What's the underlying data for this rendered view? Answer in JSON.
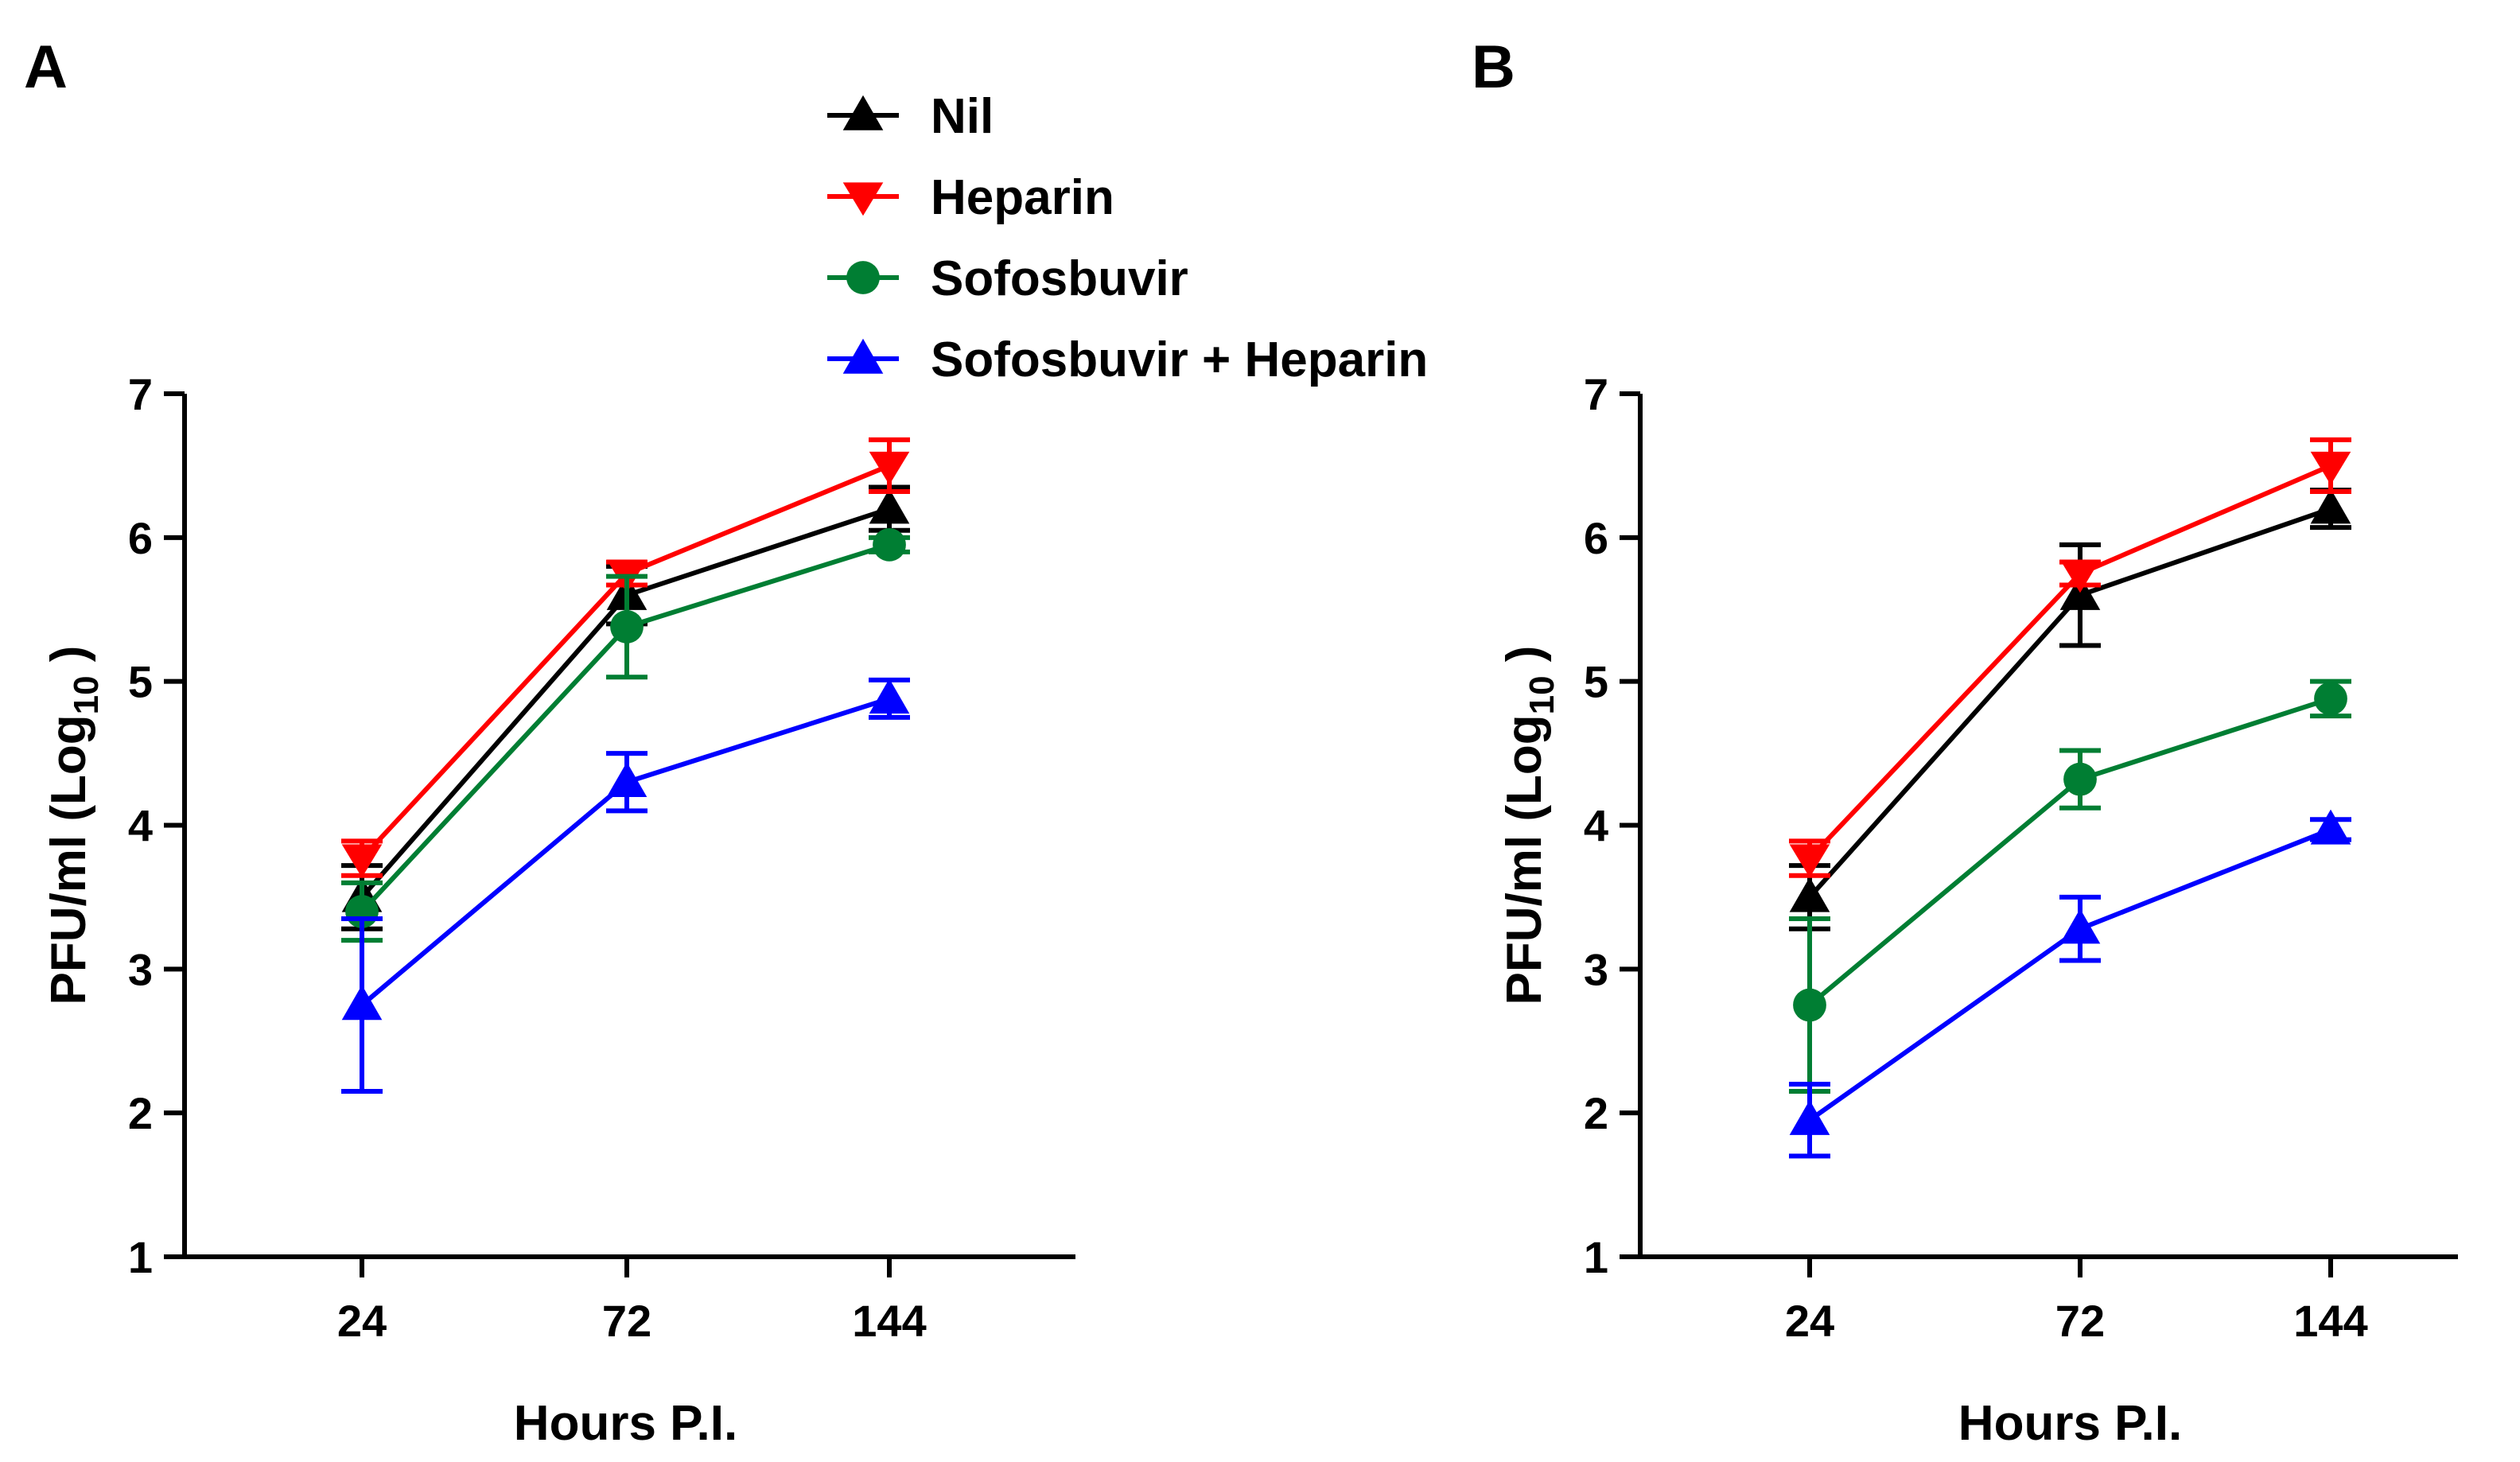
{
  "chart_data": [
    {
      "panel": "A",
      "type": "line",
      "x": [
        "24",
        "72",
        "144"
      ],
      "xlabel": "Hours P.I.",
      "ylabel": "PFU/ml (Log10 )",
      "ylabel_parts": {
        "main": "PFU/ml (Log",
        "sub": "10",
        "tail": " )"
      },
      "ylim": [
        1,
        7
      ],
      "yticks": [
        "1",
        "2",
        "3",
        "4",
        "5",
        "6",
        "7"
      ],
      "grid": false,
      "series": [
        {
          "name": "Nil",
          "color": "#000000",
          "marker": "triangle-up",
          "values": [
            3.5,
            5.6,
            6.2
          ],
          "err": [
            0.22,
            0.2,
            0.15
          ]
        },
        {
          "name": "Heparin",
          "color": "#ff0000",
          "marker": "triangle-down",
          "values": [
            3.77,
            5.75,
            6.5
          ],
          "err": [
            0.12,
            0.08,
            0.18
          ]
        },
        {
          "name": "Sofosbuvir",
          "color": "#007e33",
          "marker": "circle",
          "values": [
            3.4,
            5.38,
            5.95
          ],
          "err": [
            0.2,
            0.35,
            0.05
          ]
        },
        {
          "name": "Sofosbuvir + Heparin",
          "color": "#0000ff",
          "marker": "triangle-up",
          "values": [
            2.75,
            4.3,
            4.88
          ],
          "err": [
            0.6,
            0.2,
            0.13
          ]
        }
      ]
    },
    {
      "panel": "B",
      "type": "line",
      "x": [
        "24",
        "72",
        "144"
      ],
      "xlabel": "Hours P.I.",
      "ylabel": "PFU/ml (Log10 )",
      "ylabel_parts": {
        "main": "PFU/ml (Log",
        "sub": "10",
        "tail": " )"
      },
      "ylim": [
        1,
        7
      ],
      "yticks": [
        "1",
        "2",
        "3",
        "4",
        "5",
        "6",
        "7"
      ],
      "grid": false,
      "series": [
        {
          "name": "Nil",
          "color": "#000000",
          "marker": "triangle-up",
          "values": [
            3.5,
            5.6,
            6.2
          ],
          "err": [
            0.22,
            0.35,
            0.13
          ]
        },
        {
          "name": "Heparin",
          "color": "#ff0000",
          "marker": "triangle-down",
          "values": [
            3.77,
            5.75,
            6.5
          ],
          "err": [
            0.12,
            0.08,
            0.18
          ]
        },
        {
          "name": "Sofosbuvir",
          "color": "#007e33",
          "marker": "circle",
          "values": [
            2.75,
            4.32,
            4.88
          ],
          "err": [
            0.6,
            0.2,
            0.12
          ]
        },
        {
          "name": "Sofosbuvir + Heparin",
          "color": "#0000ff",
          "marker": "triangle-up",
          "values": [
            1.95,
            3.28,
            3.97
          ],
          "err": [
            0.25,
            0.22,
            0.07
          ]
        }
      ]
    }
  ],
  "legend": {
    "placement": "top-center",
    "items": [
      {
        "name": "Nil",
        "color": "#000000",
        "marker": "triangle-up"
      },
      {
        "name": "Heparin",
        "color": "#ff0000",
        "marker": "triangle-down"
      },
      {
        "name": "Sofosbuvir",
        "color": "#007e33",
        "marker": "circle"
      },
      {
        "name": "Sofosbuvir + Heparin",
        "color": "#0000ff",
        "marker": "triangle-up"
      }
    ]
  }
}
